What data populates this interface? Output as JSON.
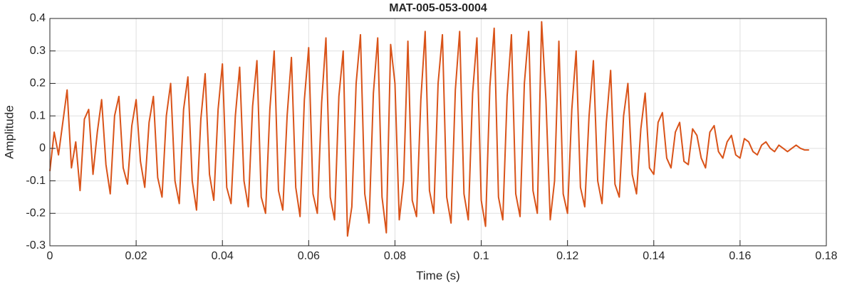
{
  "chart_data": {
    "type": "line",
    "title": "MAT-005-053-0004",
    "x_label": "Time (s)",
    "y_label": "Amplitude",
    "xlim": [
      0,
      0.18
    ],
    "xticks": [
      0,
      0.02,
      0.04,
      0.06,
      0.08,
      0.1,
      0.12,
      0.14,
      0.16,
      0.18
    ],
    "ylim": [
      -0.3,
      0.4
    ],
    "yticks": [
      -0.3,
      -0.2,
      -0.1,
      0,
      0.1,
      0.2,
      0.3,
      0.4
    ],
    "grid": true,
    "series": [
      {
        "color": "#d95319",
        "x": [
          0,
          0.001,
          0.002,
          0.003,
          0.004,
          0.005,
          0.006,
          0.007,
          0.008,
          0.009,
          0.01,
          0.011,
          0.012,
          0.013,
          0.014,
          0.015,
          0.016,
          0.017,
          0.018,
          0.019,
          0.02,
          0.021,
          0.022,
          0.023,
          0.024,
          0.025,
          0.026,
          0.027,
          0.028,
          0.029,
          0.03,
          0.031,
          0.032,
          0.033,
          0.034,
          0.035,
          0.036,
          0.037,
          0.038,
          0.039,
          0.04,
          0.041,
          0.042,
          0.043,
          0.044,
          0.045,
          0.046,
          0.047,
          0.048,
          0.049,
          0.05,
          0.051,
          0.052,
          0.053,
          0.054,
          0.055,
          0.056,
          0.057,
          0.058,
          0.059,
          0.06,
          0.061,
          0.062,
          0.063,
          0.064,
          0.065,
          0.066,
          0.067,
          0.068,
          0.069,
          0.07,
          0.071,
          0.072,
          0.073,
          0.074,
          0.075,
          0.076,
          0.077,
          0.078,
          0.079,
          0.08,
          0.081,
          0.082,
          0.083,
          0.084,
          0.085,
          0.086,
          0.087,
          0.088,
          0.089,
          0.09,
          0.091,
          0.092,
          0.093,
          0.094,
          0.095,
          0.096,
          0.097,
          0.098,
          0.099,
          0.1,
          0.101,
          0.102,
          0.103,
          0.104,
          0.105,
          0.106,
          0.107,
          0.108,
          0.109,
          0.11,
          0.111,
          0.112,
          0.113,
          0.114,
          0.115,
          0.116,
          0.117,
          0.118,
          0.119,
          0.12,
          0.121,
          0.122,
          0.123,
          0.124,
          0.125,
          0.126,
          0.127,
          0.128,
          0.129,
          0.13,
          0.131,
          0.132,
          0.133,
          0.134,
          0.135,
          0.136,
          0.137,
          0.138,
          0.139,
          0.14,
          0.141,
          0.142,
          0.143,
          0.144,
          0.145,
          0.146,
          0.147,
          0.148,
          0.149,
          0.15,
          0.151,
          0.152,
          0.153,
          0.154,
          0.155,
          0.156,
          0.157,
          0.158,
          0.159,
          0.16,
          0.161,
          0.162,
          0.163,
          0.164,
          0.165,
          0.166,
          0.167,
          0.168,
          0.169,
          0.17,
          0.171,
          0.172,
          0.173,
          0.174,
          0.175,
          0.176
        ],
        "values": [
          -0.07,
          0.05,
          -0.02,
          0.08,
          0.18,
          -0.06,
          0.02,
          -0.13,
          0.09,
          0.12,
          -0.08,
          0.05,
          0.15,
          -0.05,
          -0.14,
          0.1,
          0.16,
          -0.06,
          -0.11,
          0.07,
          0.15,
          -0.04,
          -0.12,
          0.08,
          0.16,
          -0.09,
          -0.15,
          0.1,
          0.2,
          -0.1,
          -0.17,
          0.12,
          0.22,
          -0.1,
          -0.19,
          0.09,
          0.23,
          -0.08,
          -0.16,
          0.12,
          0.26,
          -0.12,
          -0.17,
          0.1,
          0.25,
          -0.1,
          -0.18,
          0.13,
          0.27,
          -0.15,
          -0.2,
          0.12,
          0.3,
          -0.13,
          -0.19,
          0.1,
          0.28,
          -0.12,
          -0.21,
          0.15,
          0.31,
          -0.14,
          -0.2,
          0.14,
          0.34,
          -0.15,
          -0.22,
          0.16,
          0.3,
          -0.27,
          -0.18,
          0.2,
          0.35,
          -0.14,
          -0.23,
          0.17,
          0.34,
          -0.15,
          -0.26,
          0.32,
          0.2,
          -0.22,
          -0.1,
          0.33,
          -0.16,
          -0.21,
          0.15,
          0.36,
          -0.13,
          -0.2,
          0.2,
          0.35,
          -0.15,
          -0.23,
          0.18,
          0.36,
          -0.14,
          -0.22,
          0.17,
          0.34,
          -0.16,
          -0.24,
          0.19,
          0.37,
          -0.15,
          -0.22,
          0.16,
          0.35,
          -0.14,
          -0.21,
          0.2,
          0.36,
          -0.13,
          -0.2,
          0.39,
          0.15,
          -0.22,
          -0.1,
          0.33,
          -0.14,
          -0.2,
          0.12,
          0.3,
          -0.12,
          -0.18,
          0.1,
          0.27,
          -0.1,
          -0.17,
          0.08,
          0.24,
          -0.11,
          -0.15,
          0.1,
          0.2,
          -0.08,
          -0.14,
          0.06,
          0.17,
          -0.06,
          -0.08,
          0.08,
          0.11,
          -0.03,
          -0.06,
          0.05,
          0.08,
          -0.04,
          -0.05,
          0.06,
          0.04,
          -0.03,
          -0.06,
          0.05,
          0.07,
          -0.01,
          -0.03,
          0.02,
          0.04,
          -0.02,
          -0.03,
          0.03,
          0.02,
          -0.01,
          -0.02,
          0.01,
          0.02,
          0,
          -0.01,
          0.01,
          0,
          -0.01,
          0,
          0.01,
          0,
          -0.005,
          -0.005
        ]
      }
    ]
  }
}
